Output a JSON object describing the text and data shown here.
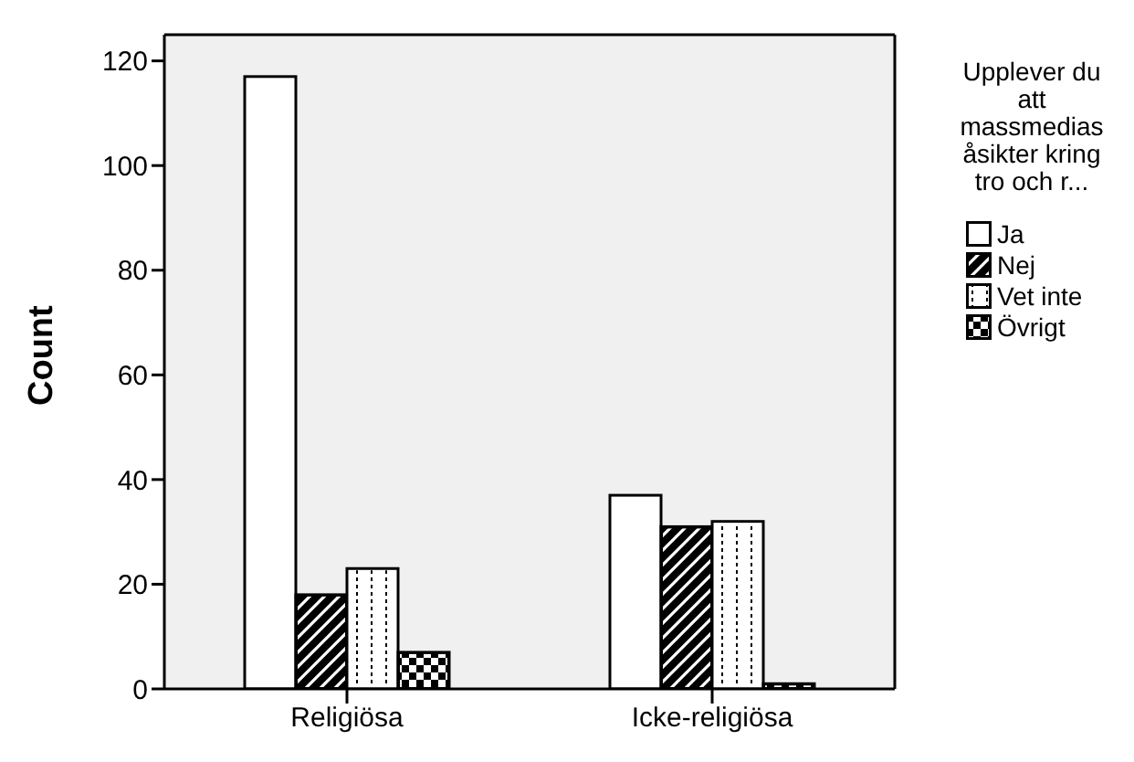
{
  "chart_data": {
    "type": "bar",
    "ylabel": "Count",
    "legend_title": "Upplever du att massmedias åsikter kring tro och r...",
    "categories": [
      "Religiösa",
      "Icke-religiösa"
    ],
    "series": [
      {
        "name": "Ja",
        "color": "#ffffff",
        "values": [
          117,
          37
        ]
      },
      {
        "name": "Nej",
        "color": "#000000",
        "values": [
          18,
          31
        ]
      },
      {
        "name": "Vet inte",
        "color": "#ffffff",
        "values": [
          23,
          32
        ]
      },
      {
        "name": "Övrigt",
        "color": "#000000",
        "values": [
          7,
          1
        ]
      }
    ],
    "ylim": [
      0,
      125
    ],
    "yticks": [
      0,
      20,
      40,
      60,
      80,
      100,
      120
    ],
    "grid": false,
    "legend": "right"
  }
}
